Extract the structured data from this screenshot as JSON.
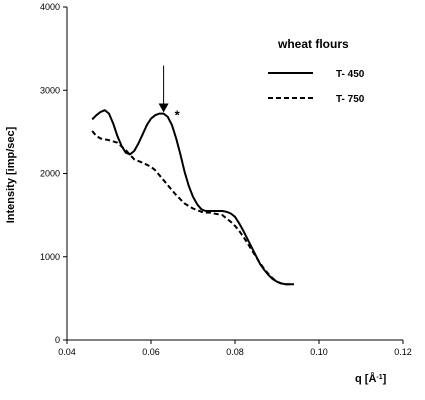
{
  "chart_data": {
    "type": "line",
    "xlabel": "q [Å",
    "xlabel_sup": "-1",
    "xlabel_end": "]",
    "ylabel": "Intensity [imp/sec]",
    "xlim": [
      0.04,
      0.12
    ],
    "ylim": [
      0,
      4000
    ],
    "x_ticks": [
      "0.04",
      "0.06",
      "0.08",
      "0.10",
      "0.12"
    ],
    "y_ticks": [
      "0",
      "1000",
      "2000",
      "3000",
      "4000"
    ],
    "grid": false,
    "legend_title": "wheat flours",
    "legend_position": "top-right",
    "annotation": "*",
    "arrow_at": [
      0.063,
      2720
    ],
    "series": [
      {
        "name": "T- 450",
        "style": "solid",
        "x": [
          0.046,
          0.047,
          0.048,
          0.049,
          0.05,
          0.051,
          0.052,
          0.053,
          0.054,
          0.055,
          0.056,
          0.057,
          0.058,
          0.059,
          0.06,
          0.061,
          0.062,
          0.063,
          0.064,
          0.065,
          0.066,
          0.067,
          0.068,
          0.069,
          0.07,
          0.071,
          0.072,
          0.073,
          0.074,
          0.075,
          0.076,
          0.077,
          0.078,
          0.079,
          0.08,
          0.081,
          0.082,
          0.083,
          0.084,
          0.085,
          0.086,
          0.087,
          0.088,
          0.089,
          0.09,
          0.091,
          0.092,
          0.093,
          0.094
        ],
        "y": [
          2650,
          2700,
          2740,
          2760,
          2720,
          2600,
          2450,
          2330,
          2250,
          2230,
          2270,
          2360,
          2470,
          2580,
          2660,
          2700,
          2720,
          2720,
          2680,
          2580,
          2420,
          2230,
          2020,
          1850,
          1720,
          1630,
          1570,
          1550,
          1550,
          1550,
          1550,
          1550,
          1540,
          1520,
          1480,
          1400,
          1310,
          1210,
          1110,
          1010,
          910,
          840,
          780,
          730,
          700,
          680,
          670,
          670,
          670
        ]
      },
      {
        "name": "T- 750",
        "style": "dashed",
        "x": [
          0.046,
          0.047,
          0.048,
          0.05,
          0.052,
          0.054,
          0.056,
          0.058,
          0.06,
          0.061,
          0.062,
          0.063,
          0.064,
          0.065,
          0.066,
          0.067,
          0.068,
          0.069,
          0.07,
          0.071,
          0.072,
          0.073,
          0.074,
          0.075,
          0.076,
          0.077,
          0.078,
          0.079,
          0.08,
          0.081,
          0.082,
          0.083,
          0.084,
          0.085,
          0.086,
          0.087,
          0.088,
          0.089,
          0.09,
          0.091,
          0.092,
          0.093,
          0.094
        ],
        "y": [
          2510,
          2450,
          2420,
          2400,
          2370,
          2280,
          2170,
          2130,
          2080,
          2040,
          1980,
          1920,
          1860,
          1800,
          1740,
          1690,
          1640,
          1610,
          1580,
          1560,
          1540,
          1530,
          1530,
          1520,
          1510,
          1500,
          1460,
          1420,
          1370,
          1310,
          1240,
          1160,
          1080,
          1000,
          920,
          850,
          790,
          740,
          700,
          680,
          670,
          670,
          670
        ]
      }
    ]
  }
}
